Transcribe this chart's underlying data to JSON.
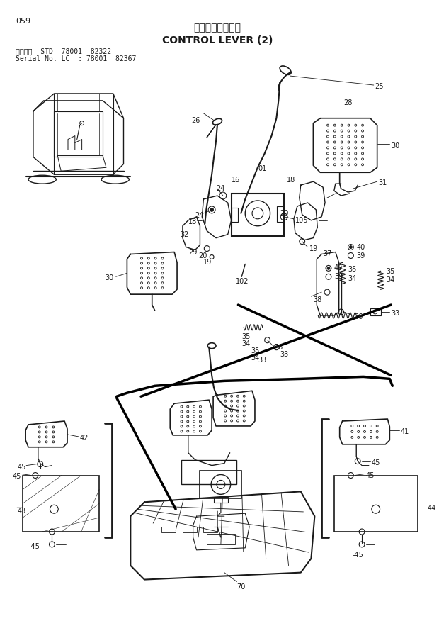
{
  "page_num": "059",
  "title_japanese": "操作レバー（２）",
  "title_english": "CONTROL LEVER (2)",
  "subtitle_line1": "適用号機  STD  78001  82322",
  "subtitle_line2": "Serial No. LC  : 78001  82367",
  "bg_color": "#ffffff",
  "line_color": "#1a1a1a",
  "text_color": "#1a1a1a",
  "fig_width": 6.2,
  "fig_height": 8.76,
  "dpi": 100
}
